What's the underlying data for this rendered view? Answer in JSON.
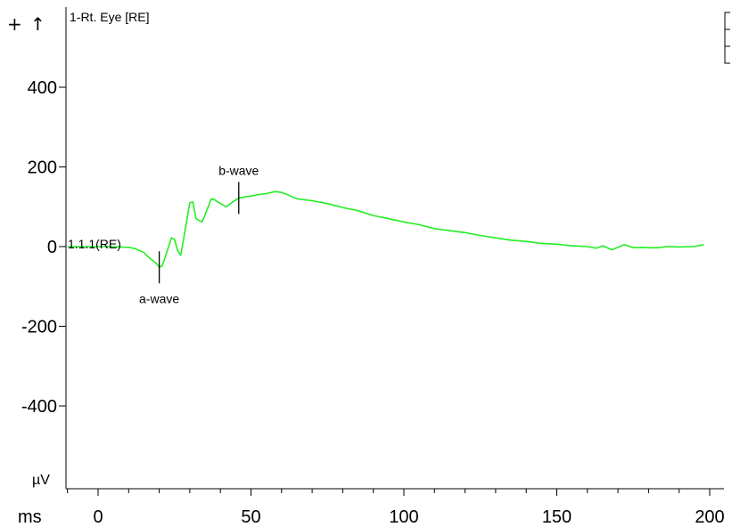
{
  "toolbar": {
    "plus_glyph": "+",
    "arrow_glyph": "↑"
  },
  "chart_data": {
    "type": "line",
    "channel_title": "1-Rt. Eye [RE]",
    "trace_label": "1.1.1(RE)",
    "xlabel": "ms",
    "ylabel": "µV",
    "xlim": [
      -10,
      200
    ],
    "ylim": [
      -560,
      580
    ],
    "x_ticks": [
      0,
      50,
      100,
      150,
      200
    ],
    "y_ticks": [
      400,
      200,
      0,
      -200,
      -400
    ],
    "grid": false,
    "series": [
      {
        "color": "#22ee22",
        "x": [
          -10,
          0,
          5,
          10,
          12,
          15,
          17,
          19,
          20,
          21,
          22,
          24,
          25,
          26,
          27,
          28,
          30,
          31,
          32,
          34,
          35,
          36,
          37,
          38,
          40,
          42,
          44,
          46,
          48,
          50,
          52,
          55,
          58,
          60,
          62,
          65,
          70,
          75,
          80,
          85,
          90,
          95,
          100,
          105,
          110,
          115,
          120,
          125,
          130,
          135,
          140,
          145,
          150,
          155,
          160,
          163,
          165,
          168,
          170,
          172,
          175,
          178,
          180,
          183,
          186,
          190,
          195,
          198
        ],
        "y": [
          0,
          0,
          0,
          -2,
          -5,
          -15,
          -30,
          -42,
          -52,
          -48,
          -25,
          22,
          18,
          -10,
          -22,
          20,
          110,
          112,
          70,
          62,
          80,
          100,
          120,
          118,
          108,
          100,
          112,
          122,
          125,
          127,
          130,
          133,
          138,
          136,
          130,
          120,
          115,
          108,
          98,
          90,
          78,
          70,
          62,
          55,
          45,
          40,
          35,
          28,
          22,
          16,
          13,
          8,
          6,
          2,
          0,
          -4,
          2,
          -8,
          -2,
          5,
          -3,
          -2,
          -3,
          -3,
          0,
          -1,
          0,
          5
        ]
      }
    ],
    "annotations": [
      {
        "label": "a-wave",
        "x": 20,
        "y": -52,
        "label_position": "below"
      },
      {
        "label": "b-wave",
        "x": 46,
        "y": 122,
        "label_position": "above"
      }
    ]
  }
}
